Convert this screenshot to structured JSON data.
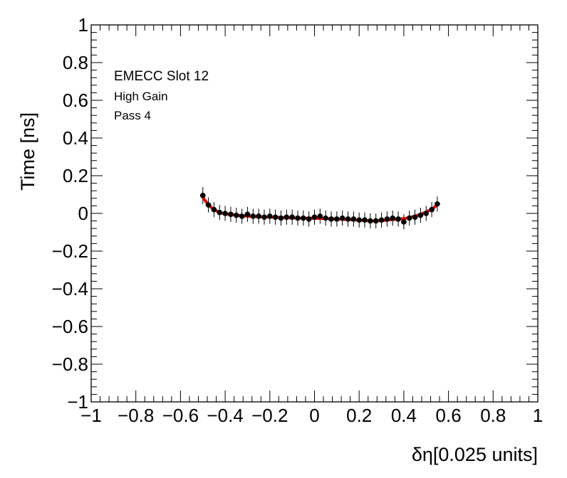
{
  "chart_data": {
    "type": "scatter",
    "title": "",
    "xlabel": "δη[0.025 units]",
    "ylabel": "Time [ns]",
    "xlim": [
      -1,
      1
    ],
    "ylim": [
      -1,
      1
    ],
    "xticks": [
      "−1",
      "−0.8",
      "−0.6",
      "−0.4",
      "−0.2",
      "0",
      "0.2",
      "0.4",
      "0.6",
      "0.8",
      "1"
    ],
    "yticks": [
      "−1",
      "−0.8",
      "−0.6",
      "−0.4",
      "−0.2",
      "0",
      "0.2",
      "0.4",
      "0.6",
      "0.8",
      "1"
    ],
    "annotations": [
      "EMECC Slot 12",
      "High Gain",
      "Pass 4"
    ],
    "grid": false,
    "series": [
      {
        "kind": "points_with_errors",
        "color": "#000000",
        "x": [
          -0.5,
          -0.475,
          -0.45,
          -0.425,
          -0.4,
          -0.375,
          -0.35,
          -0.325,
          -0.3,
          -0.275,
          -0.25,
          -0.225,
          -0.2,
          -0.175,
          -0.15,
          -0.125,
          -0.1,
          -0.075,
          -0.05,
          -0.025,
          0.0,
          0.025,
          0.05,
          0.075,
          0.1,
          0.125,
          0.15,
          0.175,
          0.2,
          0.225,
          0.25,
          0.275,
          0.3,
          0.325,
          0.35,
          0.375,
          0.4,
          0.425,
          0.45,
          0.475,
          0.5,
          0.525,
          0.55
        ],
        "y": [
          0.095,
          0.045,
          0.02,
          0.005,
          0.0,
          -0.005,
          -0.01,
          -0.015,
          -0.005,
          -0.015,
          -0.015,
          -0.02,
          -0.015,
          -0.02,
          -0.025,
          -0.02,
          -0.02,
          -0.025,
          -0.025,
          -0.03,
          -0.02,
          -0.015,
          -0.025,
          -0.03,
          -0.03,
          -0.025,
          -0.03,
          -0.03,
          -0.035,
          -0.035,
          -0.04,
          -0.04,
          -0.035,
          -0.03,
          -0.025,
          -0.03,
          -0.045,
          -0.025,
          -0.02,
          -0.01,
          0.0,
          0.02,
          0.05
        ],
        "yerr": [
          0.045,
          0.04,
          0.04,
          0.04,
          0.04,
          0.04,
          0.04,
          0.04,
          0.04,
          0.04,
          0.04,
          0.04,
          0.04,
          0.04,
          0.04,
          0.04,
          0.04,
          0.04,
          0.04,
          0.04,
          0.04,
          0.04,
          0.04,
          0.04,
          0.04,
          0.04,
          0.04,
          0.04,
          0.04,
          0.04,
          0.04,
          0.04,
          0.04,
          0.04,
          0.04,
          0.04,
          0.04,
          0.04,
          0.04,
          0.04,
          0.04,
          0.04,
          0.04
        ],
        "xerr": 0.0125
      },
      {
        "kind": "fit_curve",
        "color": "#e00000",
        "x": [
          -0.5,
          -0.475,
          -0.45,
          -0.425,
          -0.4,
          -0.35,
          -0.3,
          -0.25,
          -0.2,
          -0.15,
          -0.1,
          -0.05,
          0.0,
          0.05,
          0.1,
          0.15,
          0.2,
          0.25,
          0.3,
          0.35,
          0.4,
          0.425,
          0.45,
          0.475,
          0.5,
          0.525,
          0.55
        ],
        "y": [
          0.085,
          0.045,
          0.02,
          0.005,
          -0.003,
          -0.01,
          -0.015,
          -0.018,
          -0.02,
          -0.022,
          -0.024,
          -0.025,
          -0.026,
          -0.028,
          -0.03,
          -0.033,
          -0.036,
          -0.04,
          -0.038,
          -0.033,
          -0.028,
          -0.022,
          -0.015,
          -0.005,
          0.008,
          0.022,
          0.045
        ]
      }
    ]
  }
}
